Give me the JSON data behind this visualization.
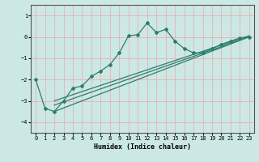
{
  "title": "",
  "xlabel": "Humidex (Indice chaleur)",
  "bg_color": "#cce8e4",
  "line_color": "#2d7d6e",
  "grid_color": "#e8b0b0",
  "x_min": -0.5,
  "x_max": 23.5,
  "y_min": -4.5,
  "y_max": 1.5,
  "yticks": [
    -4,
    -3,
    -2,
    -1,
    0,
    1
  ],
  "xticks": [
    0,
    1,
    2,
    3,
    4,
    5,
    6,
    7,
    8,
    9,
    10,
    11,
    12,
    13,
    14,
    15,
    16,
    17,
    18,
    19,
    20,
    21,
    22,
    23
  ],
  "main_curve_x": [
    0,
    1,
    2,
    3,
    4,
    5,
    6,
    7,
    8,
    9,
    10,
    11,
    12,
    13,
    14,
    15,
    16,
    17,
    18,
    19,
    20,
    21,
    22,
    23
  ],
  "main_curve_y": [
    -2.0,
    -3.35,
    -3.5,
    -3.0,
    -2.4,
    -2.3,
    -1.85,
    -1.6,
    -1.3,
    -0.75,
    0.05,
    0.1,
    0.65,
    0.2,
    0.35,
    -0.2,
    -0.55,
    -0.75,
    -0.75,
    -0.55,
    -0.35,
    -0.2,
    -0.05,
    0.0
  ],
  "line1_x": [
    2,
    23
  ],
  "line1_y": [
    -3.5,
    0.0
  ],
  "line2_x": [
    2,
    23
  ],
  "line2_y": [
    -3.2,
    0.0
  ],
  "line3_x": [
    2,
    23
  ],
  "line3_y": [
    -3.0,
    0.05
  ]
}
